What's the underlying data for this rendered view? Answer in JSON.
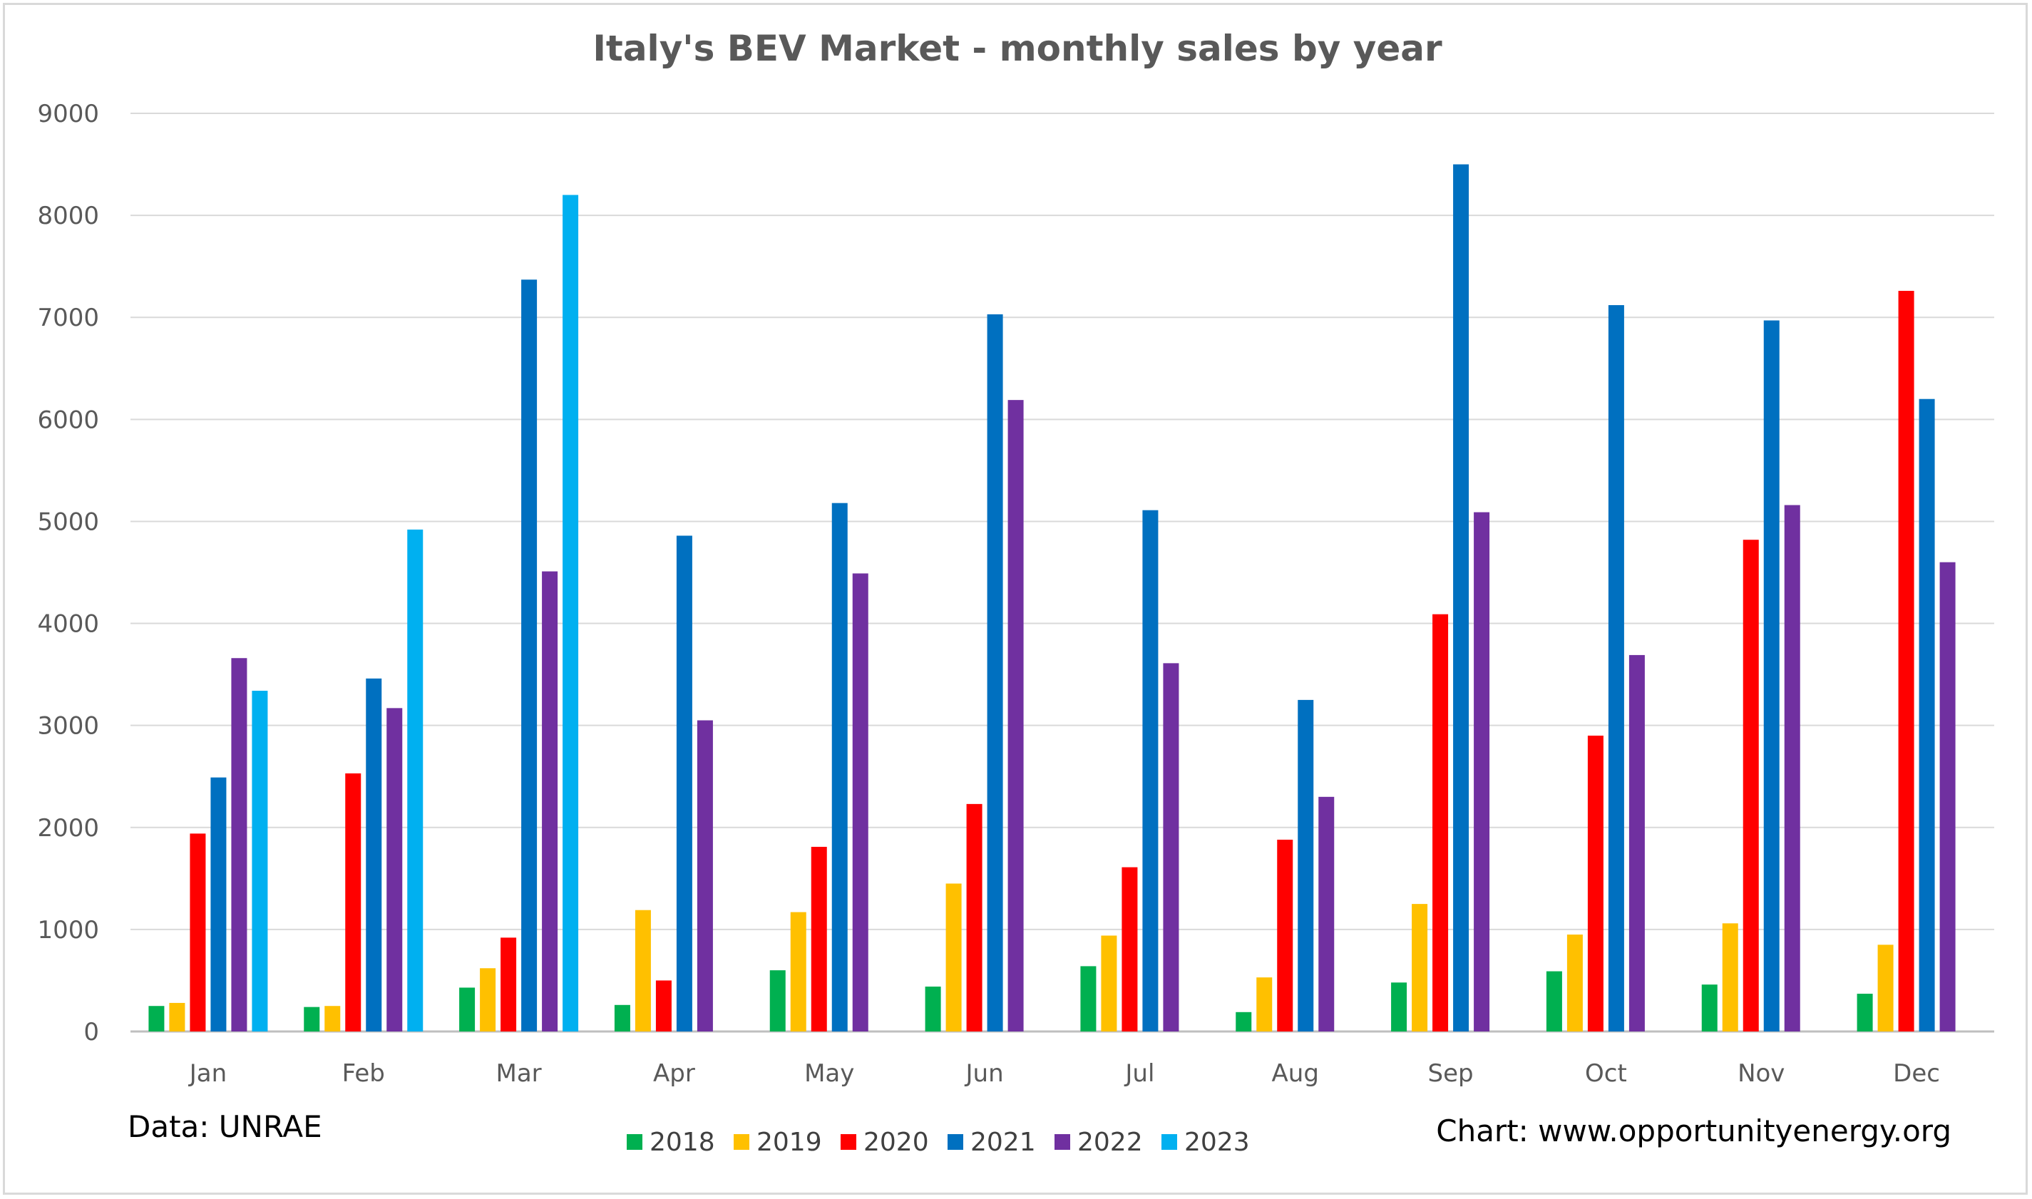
{
  "chart_data": {
    "type": "bar",
    "title": "Italy's BEV Market - monthly sales by year",
    "xlabel": "",
    "ylabel": "",
    "ylim": [
      0,
      9000
    ],
    "yticks": [
      0,
      1000,
      2000,
      3000,
      4000,
      5000,
      6000,
      7000,
      8000,
      9000
    ],
    "grid": true,
    "legend_position": "bottom",
    "categories": [
      "Jan",
      "Feb",
      "Mar",
      "Apr",
      "May",
      "Jun",
      "Jul",
      "Aug",
      "Sep",
      "Oct",
      "Nov",
      "Dec"
    ],
    "series": [
      {
        "name": "2018",
        "color": "#00b050",
        "values": [
          250,
          240,
          430,
          260,
          600,
          440,
          640,
          190,
          480,
          590,
          460,
          370
        ]
      },
      {
        "name": "2019",
        "color": "#ffc000",
        "values": [
          280,
          250,
          620,
          1190,
          1170,
          1450,
          940,
          530,
          1250,
          950,
          1060,
          850
        ]
      },
      {
        "name": "2020",
        "color": "#ff0000",
        "values": [
          1940,
          2530,
          920,
          500,
          1810,
          2230,
          1610,
          1880,
          4090,
          2900,
          4820,
          7260
        ]
      },
      {
        "name": "2021",
        "color": "#0070c0",
        "values": [
          2490,
          3460,
          7370,
          4860,
          5180,
          7030,
          5110,
          3250,
          8500,
          7120,
          6970,
          6200
        ]
      },
      {
        "name": "2022",
        "color": "#7030a0",
        "values": [
          3660,
          3170,
          4510,
          3050,
          4490,
          6190,
          3610,
          2300,
          5090,
          3690,
          5160,
          4600
        ]
      },
      {
        "name": "2023",
        "color": "#00b0f0",
        "values": [
          3340,
          4920,
          8200,
          null,
          null,
          null,
          null,
          null,
          null,
          null,
          null,
          null
        ]
      }
    ],
    "footer_left": "Data: UNRAE",
    "footer_right": "Chart: www.opportunityenergy.org"
  }
}
